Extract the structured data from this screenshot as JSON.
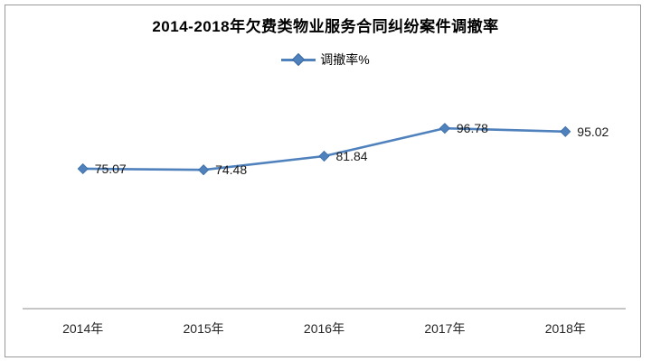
{
  "window": {
    "background": "#ffffff",
    "frame_border_color": "#9a9a9a"
  },
  "chart_data": {
    "type": "line",
    "title": "2014-2018年欠费类物业服务合同纠纷案件调撤率",
    "legend_position": "top",
    "legend": [
      "调撤率%"
    ],
    "categories": [
      "2014年",
      "2015年",
      "2016年",
      "2017年",
      "2018年"
    ],
    "series": [
      {
        "name": "调撤率%",
        "values": [
          75.07,
          74.48,
          81.84,
          96.78,
          95.02
        ]
      }
    ],
    "data_labels": [
      "75.07",
      "74.48",
      "81.84",
      "96.78",
      "95.02"
    ],
    "marker": "diamond",
    "line_color": "#4f81bd",
    "marker_stroke_color": "#3a6aa5",
    "data_label_color": "#1a1a1a",
    "axis_label_color": "#262626",
    "x_axis_line_color": "#8c8c8c",
    "gridlines": false,
    "y_axis_visible": false,
    "ylim_implied": [
      0,
      120
    ]
  }
}
